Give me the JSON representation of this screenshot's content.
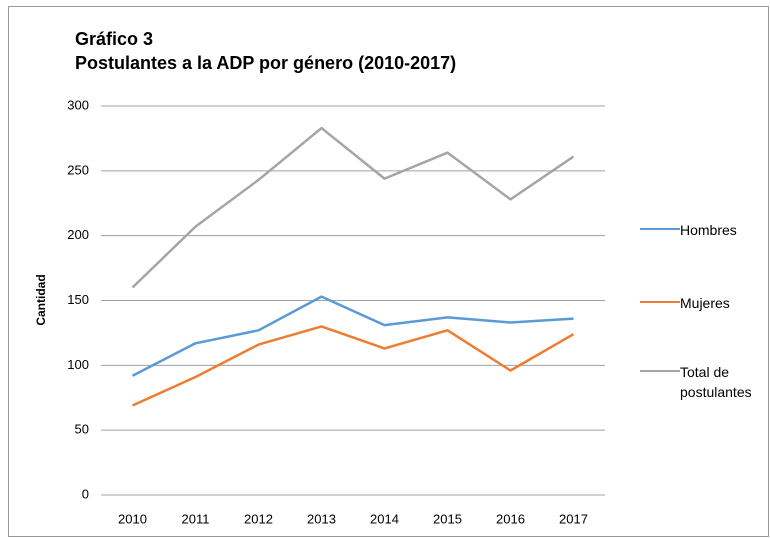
{
  "chart_data": {
    "type": "line",
    "title": "Gráfico 3",
    "subtitle": "Postulantes a la ADP por género (2010-2017)",
    "y_label": "Cantidad",
    "categories": [
      "2010",
      "2011",
      "2012",
      "2013",
      "2014",
      "2015",
      "2016",
      "2017"
    ],
    "series": [
      {
        "name": "Hombres",
        "color": "#5b9bd5",
        "values": [
          92,
          117,
          127,
          153,
          131,
          137,
          133,
          136
        ]
      },
      {
        "name": "Mujeres",
        "color": "#ed7d31",
        "values": [
          69,
          91,
          116,
          130,
          113,
          127,
          96,
          124
        ]
      },
      {
        "name": "Total de postulantes",
        "color": "#a5a5a5",
        "values": [
          160,
          207,
          243,
          283,
          244,
          264,
          228,
          261
        ]
      }
    ],
    "ylim": [
      0,
      300
    ],
    "yticks": [
      0,
      50,
      100,
      150,
      200,
      250,
      300
    ],
    "grid": true,
    "legend": "right"
  }
}
